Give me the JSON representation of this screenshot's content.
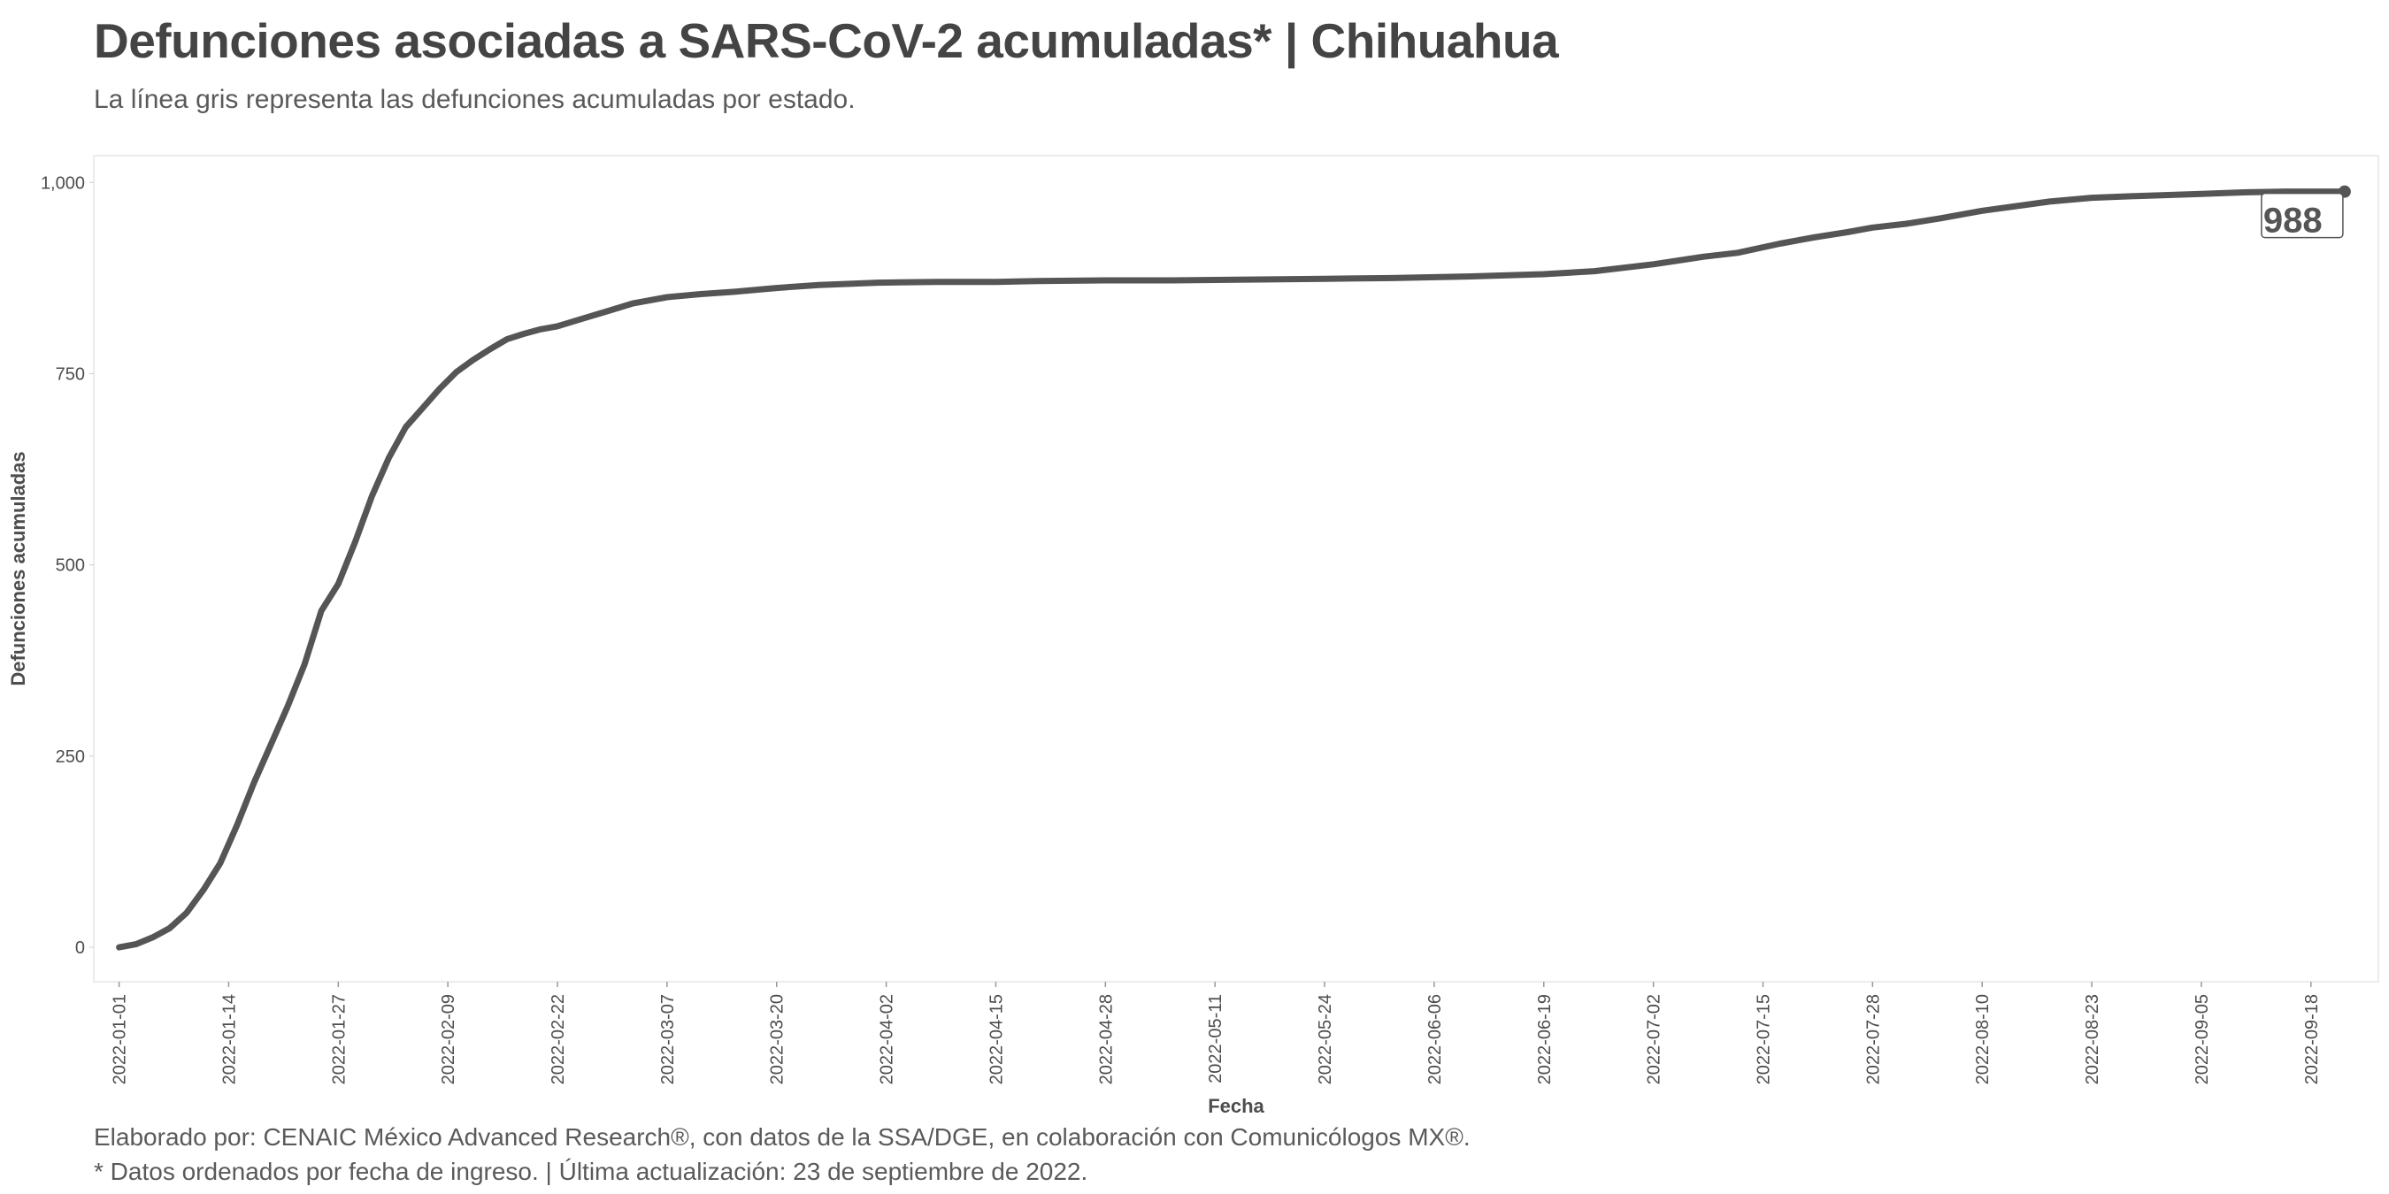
{
  "title": "Defunciones asociadas a SARS-CoV-2 acumuladas* | Chihuahua",
  "subtitle": "La línea gris representa las defunciones acumuladas por estado.",
  "caption": {
    "line1": "Elaborado por: CENAIC México Advanced Research®, con datos de la SSA/DGE, en colaboración con Comunicólogos MX®.",
    "line2": "* Datos ordenados por fecha de ingreso. | Última actualización: 23 de septiembre de 2022."
  },
  "colors": {
    "line": "#555555",
    "panel_border": "#e6e6e6",
    "text": "#4d4d4d"
  },
  "chart_data": {
    "type": "line",
    "title": "Defunciones asociadas a SARS-CoV-2 acumuladas* | Chihuahua",
    "subtitle": "La línea gris representa las defunciones acumuladas por estado.",
    "xlabel": "Fecha",
    "ylabel": "Defunciones acumuladas",
    "xlim": [
      "2021-12-29",
      "2022-09-26"
    ],
    "ylim": [
      -45,
      1035
    ],
    "yticks": [
      0,
      250,
      500,
      750,
      1000
    ],
    "ytick_labels": [
      "0",
      "250",
      "500",
      "750",
      "1,000"
    ],
    "xticks": [
      "2022-01-01",
      "2022-01-14",
      "2022-01-27",
      "2022-02-09",
      "2022-02-22",
      "2022-03-07",
      "2022-03-20",
      "2022-04-02",
      "2022-04-15",
      "2022-04-28",
      "2022-05-11",
      "2022-05-24",
      "2022-06-06",
      "2022-06-19",
      "2022-07-02",
      "2022-07-15",
      "2022-07-28",
      "2022-08-10",
      "2022-08-23",
      "2022-09-05",
      "2022-09-18"
    ],
    "grid": false,
    "legend": "none",
    "end_label": "988",
    "series": [
      {
        "x": [
          "2022-01-01",
          "2022-01-03",
          "2022-01-05",
          "2022-01-07",
          "2022-01-09",
          "2022-01-11",
          "2022-01-13",
          "2022-01-15",
          "2022-01-17",
          "2022-01-19",
          "2022-01-21",
          "2022-01-23",
          "2022-01-25",
          "2022-01-27",
          "2022-01-29",
          "2022-01-31",
          "2022-02-02",
          "2022-02-04",
          "2022-02-06",
          "2022-02-08",
          "2022-02-10",
          "2022-02-12",
          "2022-02-14",
          "2022-02-16",
          "2022-02-18",
          "2022-02-20",
          "2022-02-22",
          "2022-02-25",
          "2022-02-28",
          "2022-03-03",
          "2022-03-07",
          "2022-03-11",
          "2022-03-15",
          "2022-03-20",
          "2022-03-25",
          "2022-04-01",
          "2022-04-08",
          "2022-04-15",
          "2022-04-20",
          "2022-04-28",
          "2022-05-06",
          "2022-05-15",
          "2022-05-24",
          "2022-06-01",
          "2022-06-10",
          "2022-06-19",
          "2022-06-25",
          "2022-07-02",
          "2022-07-08",
          "2022-07-12",
          "2022-07-17",
          "2022-07-21",
          "2022-07-25",
          "2022-07-28",
          "2022-08-01",
          "2022-08-05",
          "2022-08-10",
          "2022-08-14",
          "2022-08-18",
          "2022-08-23",
          "2022-08-28",
          "2022-09-05",
          "2022-09-10",
          "2022-09-15",
          "2022-09-22"
        ],
        "y": [
          0,
          4,
          13,
          25,
          45,
          75,
          110,
          160,
          215,
          265,
          315,
          370,
          440,
          475,
          530,
          590,
          640,
          680,
          705,
          730,
          752,
          768,
          782,
          795,
          802,
          808,
          812,
          822,
          832,
          842,
          850,
          854,
          857,
          862,
          866,
          869,
          870,
          870,
          871,
          872,
          872,
          873,
          874,
          875,
          877,
          880,
          884,
          893,
          903,
          908,
          920,
          928,
          935,
          941,
          946,
          953,
          963,
          969,
          975,
          980,
          982,
          985,
          987,
          988,
          988
        ]
      }
    ]
  }
}
